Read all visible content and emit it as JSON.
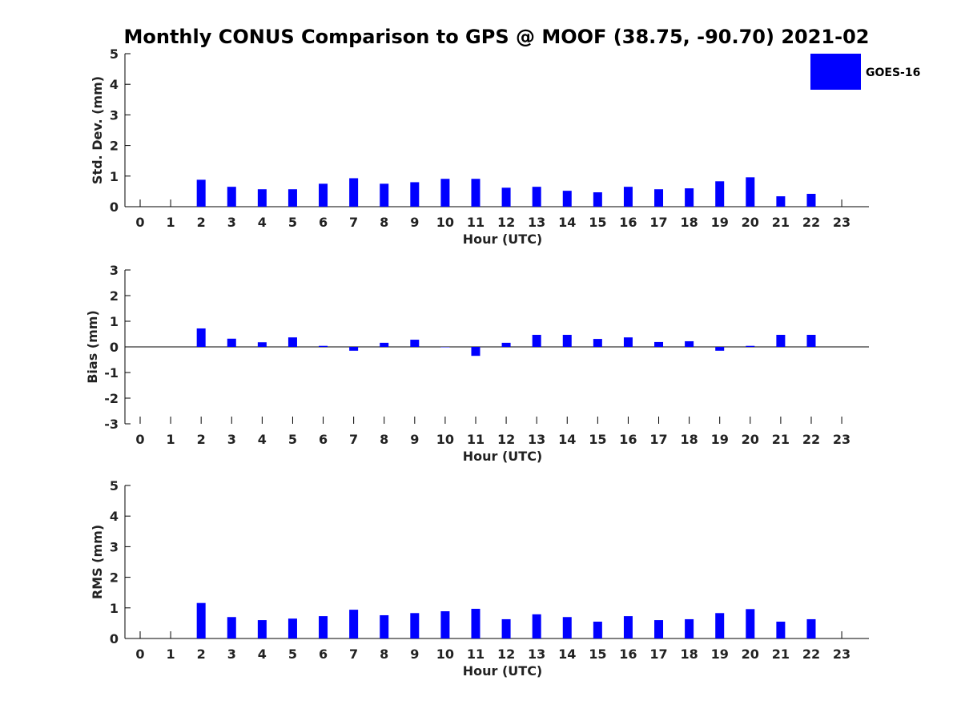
{
  "title": "Monthly CONUS Comparison to GPS @ MOOF (38.75, -90.70) 2021-02",
  "legend": {
    "label": "GOES-16",
    "color": "#0000ff"
  },
  "chart_data": [
    {
      "type": "bar",
      "xlabel": "Hour (UTC)",
      "ylabel": "Std. Dev. (mm)",
      "ylim": [
        0,
        5
      ],
      "yticks": [
        "0",
        "1",
        "2",
        "3",
        "4",
        "5"
      ],
      "categories": [
        "0",
        "1",
        "2",
        "3",
        "4",
        "5",
        "6",
        "7",
        "8",
        "9",
        "10",
        "11",
        "12",
        "13",
        "14",
        "15",
        "16",
        "17",
        "18",
        "19",
        "20",
        "21",
        "22",
        "23"
      ],
      "series": [
        {
          "name": "GOES-16",
          "values": [
            null,
            null,
            0.88,
            0.65,
            0.57,
            0.57,
            0.75,
            0.93,
            0.75,
            0.8,
            0.91,
            0.91,
            0.62,
            0.65,
            0.52,
            0.47,
            0.65,
            0.57,
            0.6,
            0.83,
            0.96,
            0.34,
            0.42,
            null
          ]
        }
      ]
    },
    {
      "type": "bar",
      "xlabel": "Hour (UTC)",
      "ylabel": "Bias (mm)",
      "ylim": [
        -3,
        3
      ],
      "yticks": [
        "-3",
        "-2",
        "-1",
        "0",
        "1",
        "2",
        "3"
      ],
      "categories": [
        "0",
        "1",
        "2",
        "3",
        "4",
        "5",
        "6",
        "7",
        "8",
        "9",
        "10",
        "11",
        "12",
        "13",
        "14",
        "15",
        "16",
        "17",
        "18",
        "19",
        "20",
        "21",
        "22",
        "23"
      ],
      "series": [
        {
          "name": "GOES-16",
          "values": [
            null,
            null,
            0.72,
            0.32,
            0.18,
            0.37,
            0.04,
            -0.15,
            0.16,
            0.28,
            0.0,
            -0.35,
            0.16,
            0.47,
            0.47,
            0.31,
            0.37,
            0.19,
            0.22,
            -0.15,
            0.04,
            0.47,
            0.47,
            null
          ]
        }
      ]
    },
    {
      "type": "bar",
      "xlabel": "Hour (UTC)",
      "ylabel": "RMS (mm)",
      "ylim": [
        0,
        5
      ],
      "yticks": [
        "0",
        "1",
        "2",
        "3",
        "4",
        "5"
      ],
      "categories": [
        "0",
        "1",
        "2",
        "3",
        "4",
        "5",
        "6",
        "7",
        "8",
        "9",
        "10",
        "11",
        "12",
        "13",
        "14",
        "15",
        "16",
        "17",
        "18",
        "19",
        "20",
        "21",
        "22",
        "23"
      ],
      "series": [
        {
          "name": "GOES-16",
          "values": [
            null,
            null,
            1.16,
            0.7,
            0.6,
            0.65,
            0.73,
            0.94,
            0.76,
            0.83,
            0.89,
            0.97,
            0.63,
            0.79,
            0.7,
            0.55,
            0.73,
            0.6,
            0.63,
            0.83,
            0.96,
            0.55,
            0.63,
            null
          ]
        }
      ]
    }
  ]
}
